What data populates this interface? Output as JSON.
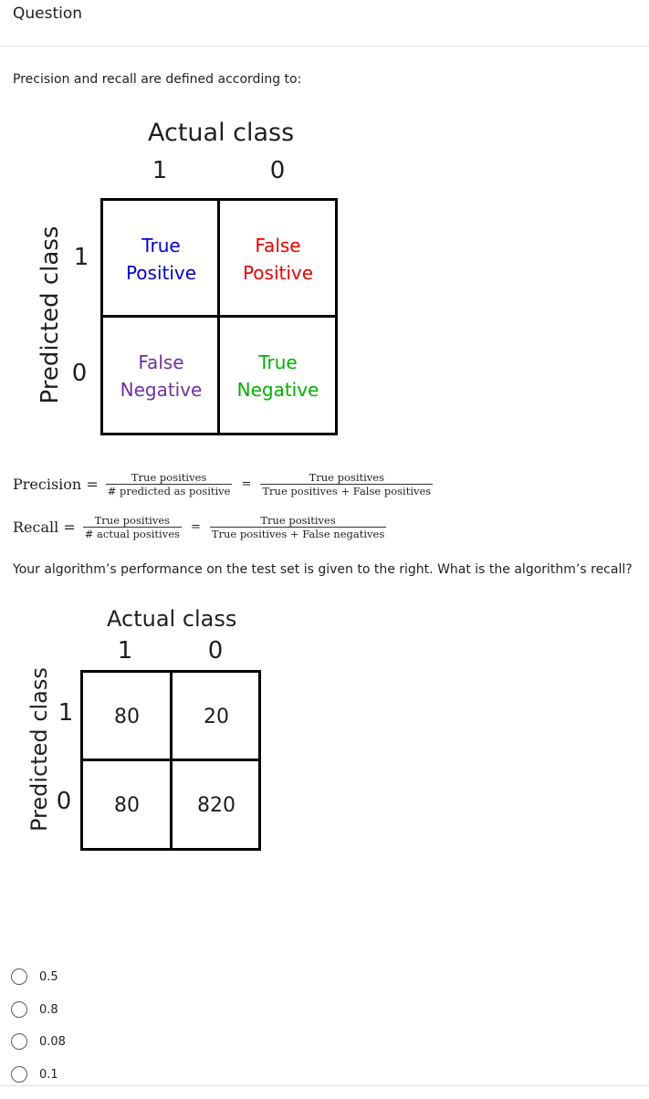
{
  "header": {
    "title": "Question"
  },
  "intro": "Precision and recall are defined according to:",
  "definition_matrix": {
    "actual_title": "Actual class",
    "predicted_title": "Predicted class",
    "col_labels": [
      "1",
      "0"
    ],
    "row_labels": [
      "1",
      "0"
    ],
    "cells": [
      {
        "line1": "True",
        "line2": "Positive",
        "color": "#0000cc"
      },
      {
        "line1": "False",
        "line2": "Positive",
        "color": "#ee0000"
      },
      {
        "line1": "False",
        "line2": "Negative",
        "color": "#7030a0"
      },
      {
        "line1": "True",
        "line2": "Negative",
        "color": "#00b000"
      }
    ]
  },
  "formulas": {
    "precision": {
      "lhs": "Precision =",
      "frac1_num": "True positives",
      "frac1_den": "# predicted as positive",
      "eq": "=",
      "frac2_num": "True positives",
      "frac2_den": "True positives + False positives"
    },
    "recall": {
      "lhs": "Recall =",
      "frac1_num": "True positives",
      "frac1_den": "# actual positives",
      "eq": "=",
      "frac2_num": "True positives",
      "frac2_den": "True positives + False negatives"
    }
  },
  "question_text": "Your algorithm’s performance on the test set is given to the right. What is the algorithm’s recall?",
  "performance_matrix": {
    "actual_title": "Actual class",
    "predicted_title": "Predicted class",
    "col_labels": [
      "1",
      "0"
    ],
    "row_labels": [
      "1",
      "0"
    ],
    "cells": [
      "80",
      "20",
      "80",
      "820"
    ]
  },
  "options": [
    {
      "label": "0.5",
      "selected": false
    },
    {
      "label": "0.8",
      "selected": false
    },
    {
      "label": "0.08",
      "selected": false
    },
    {
      "label": "0.1",
      "selected": false
    }
  ]
}
